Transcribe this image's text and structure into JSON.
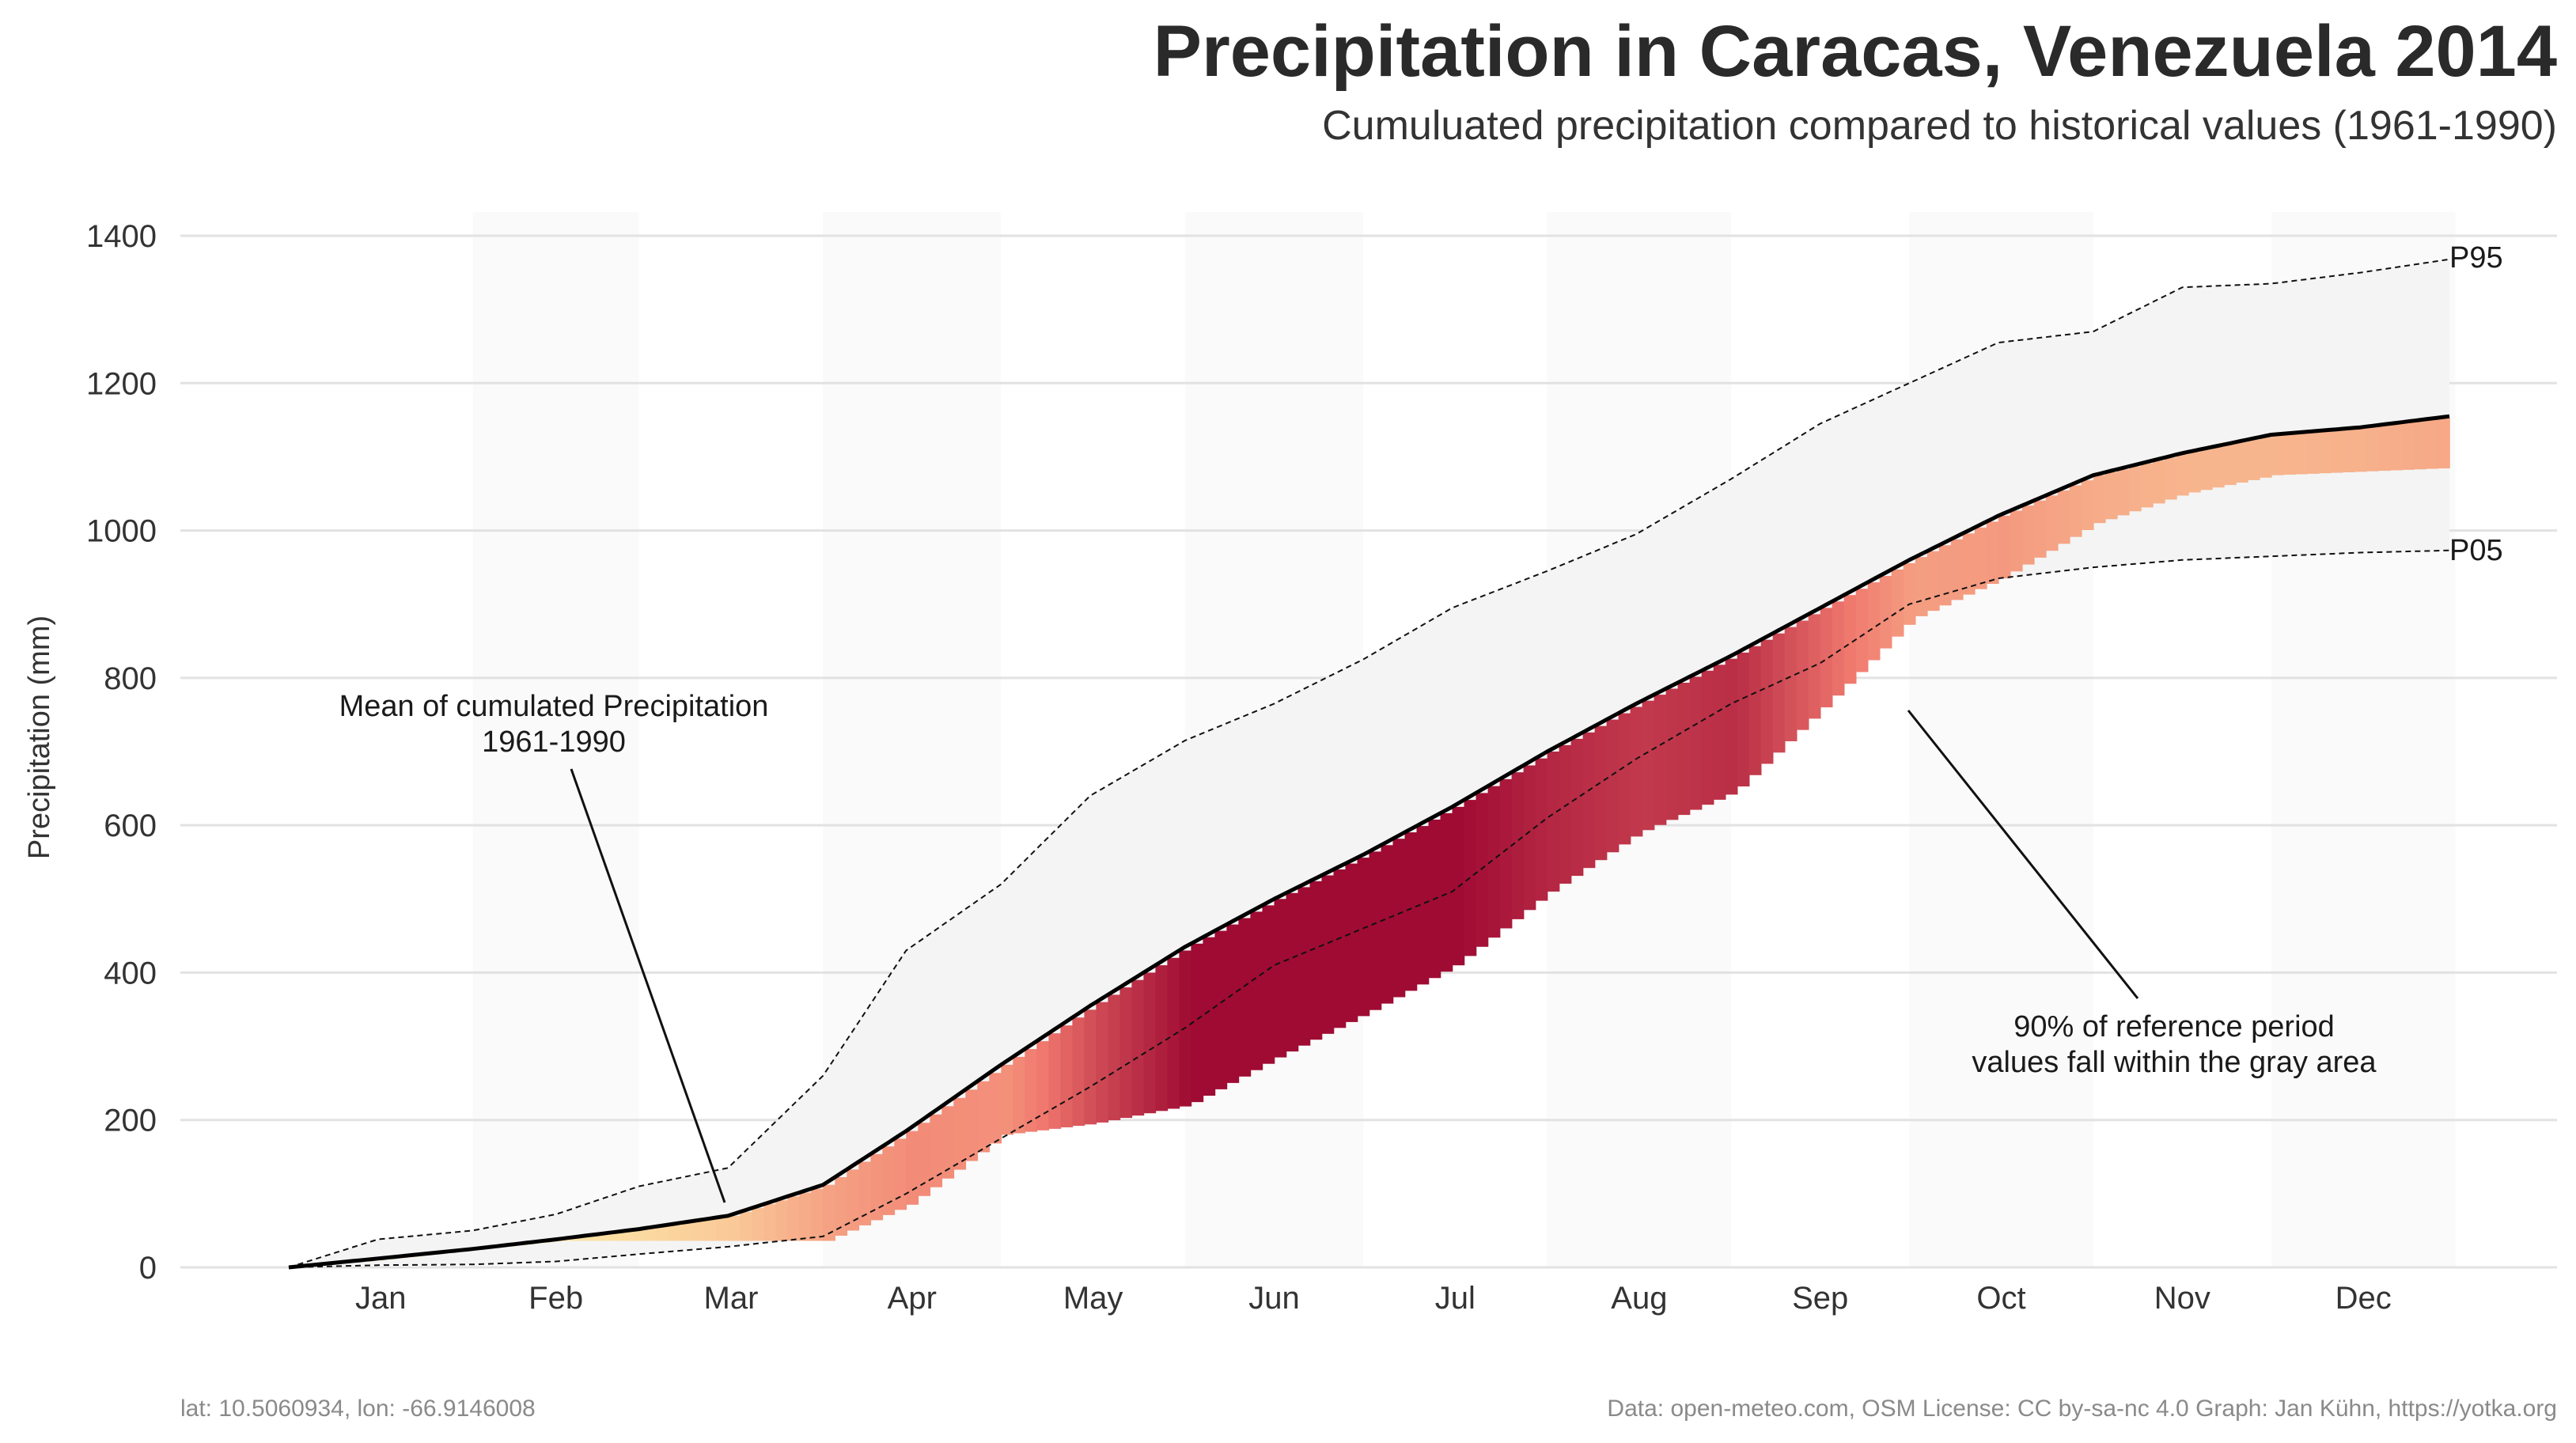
{
  "chart_data": {
    "type": "area",
    "title": "Precipitation in Caracas, Venezuela 2014",
    "subtitle": "Cumuluated precipitation compared to historical values (1961-1990)",
    "ylabel": "Precipitation (mm)",
    "xlabel": "",
    "ylim": [
      0,
      1400
    ],
    "yticks": [
      0,
      200,
      400,
      600,
      800,
      1000,
      1200,
      1400
    ],
    "grid": true,
    "months": [
      "Jan",
      "Feb",
      "Mar",
      "Apr",
      "May",
      "Jun",
      "Jul",
      "Aug",
      "Sep",
      "Oct",
      "Nov",
      "Dec"
    ],
    "series": [
      {
        "name": "Mean of cumulated Precipitation 1961-1990",
        "x": [
          1,
          16,
          32,
          46,
          60,
          75,
          91,
          105,
          121,
          136,
          152,
          167,
          182,
          197,
          213,
          228,
          244,
          259,
          274,
          289,
          305,
          320,
          335,
          350,
          365
        ],
        "values": [
          0,
          12,
          25,
          38,
          52,
          70,
          112,
          185,
          275,
          355,
          435,
          500,
          560,
          625,
          700,
          765,
          830,
          895,
          960,
          1020,
          1075,
          1105,
          1130,
          1140,
          1155
        ]
      },
      {
        "name": "P95",
        "x": [
          1,
          16,
          32,
          46,
          60,
          75,
          91,
          105,
          121,
          136,
          152,
          167,
          182,
          197,
          213,
          228,
          244,
          259,
          274,
          289,
          305,
          320,
          335,
          350,
          365
        ],
        "values": [
          0,
          38,
          50,
          72,
          110,
          135,
          260,
          430,
          520,
          640,
          715,
          765,
          825,
          895,
          945,
          995,
          1070,
          1145,
          1200,
          1255,
          1270,
          1330,
          1335,
          1350,
          1368
        ]
      },
      {
        "name": "P05",
        "x": [
          1,
          16,
          32,
          46,
          60,
          75,
          91,
          105,
          121,
          136,
          152,
          167,
          182,
          197,
          213,
          228,
          244,
          259,
          274,
          289,
          305,
          320,
          335,
          350,
          365
        ],
        "values": [
          0,
          3,
          4,
          8,
          18,
          28,
          42,
          100,
          175,
          245,
          325,
          410,
          460,
          510,
          610,
          690,
          765,
          820,
          900,
          935,
          950,
          960,
          965,
          970,
          973
        ]
      },
      {
        "name": "2014",
        "x": [
          1,
          16,
          32,
          46,
          60,
          75,
          91,
          105,
          121,
          136,
          152,
          167,
          182,
          197,
          213,
          228,
          244,
          259,
          274,
          289,
          305,
          320,
          335,
          350,
          365
        ],
        "values": [
          0,
          10,
          24,
          36,
          36,
          36,
          36,
          85,
          180,
          195,
          220,
          285,
          345,
          410,
          510,
          590,
          645,
          760,
          880,
          935,
          1010,
          1050,
          1075,
          1080,
          1085
        ]
      }
    ],
    "labels": {
      "p95": "P95",
      "p05": "P05",
      "annotation_mean_line1": "Mean of cumulated Precipitation",
      "annotation_mean_line2": "1961-1990",
      "annotation_band_line1": "90% of reference period",
      "annotation_band_line2": "values fall within the gray area"
    },
    "colors": {
      "band": "#f4f4f4",
      "mean_line": "#000000",
      "deficit_low": "#fde8a8",
      "deficit_high": "#9b0530"
    }
  },
  "caption": {
    "left": "lat: 10.5060934, lon: -66.9146008",
    "right": "Data: open-meteo.com, OSM  License: CC by-sa-nc 4.0  Graph: Jan Kühn, https://yotka.org"
  }
}
